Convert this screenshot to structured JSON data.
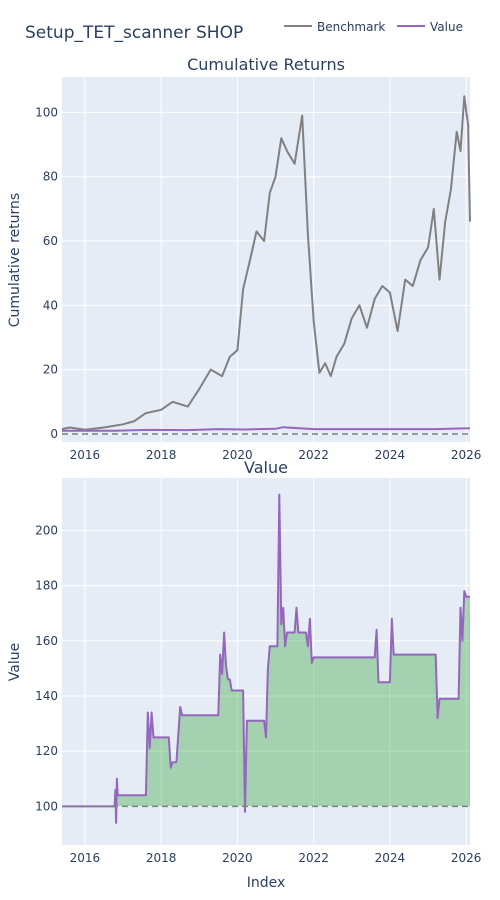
{
  "figure": {
    "title": "Setup_TET_scanner SHOP",
    "legend": [
      {
        "name": "Benchmark",
        "color": "#808080"
      },
      {
        "name": "Value",
        "color": "#9467bd"
      }
    ],
    "legend_position": "top-right"
  },
  "chart_data": [
    {
      "type": "line",
      "title": "Cumulative Returns",
      "xlabel": "",
      "ylabel": "Cumulative returns",
      "xlim": [
        2015.4,
        2026.1
      ],
      "ylim": [
        -2.5,
        111
      ],
      "yticks": [
        0,
        20,
        40,
        60,
        80,
        100
      ],
      "xticks": [
        2016,
        2018,
        2020,
        2022,
        2024,
        2026
      ],
      "grid": true,
      "series": [
        {
          "name": "Benchmark",
          "color": "#808080",
          "x": [
            2015.4,
            2015.6,
            2016.0,
            2016.5,
            2017.0,
            2017.3,
            2017.6,
            2018.0,
            2018.3,
            2018.7,
            2019.0,
            2019.3,
            2019.6,
            2019.8,
            2020.0,
            2020.15,
            2020.35,
            2020.5,
            2020.7,
            2020.85,
            2021.0,
            2021.15,
            2021.3,
            2021.5,
            2021.7,
            2021.85,
            2022.0,
            2022.15,
            2022.3,
            2022.45,
            2022.6,
            2022.8,
            2023.0,
            2023.2,
            2023.4,
            2023.6,
            2023.8,
            2024.0,
            2024.2,
            2024.4,
            2024.6,
            2024.8,
            2025.0,
            2025.15,
            2025.3,
            2025.45,
            2025.6,
            2025.75,
            2025.85,
            2025.95,
            2026.05,
            2026.1
          ],
          "values": [
            1.5,
            2.0,
            1.3,
            2.0,
            3.0,
            4.0,
            6.5,
            7.5,
            10.0,
            8.5,
            14.0,
            20.0,
            18.0,
            24.0,
            26.0,
            45.0,
            55.0,
            63.0,
            60.0,
            75.0,
            80.0,
            92.0,
            88.0,
            84.0,
            99.0,
            62.0,
            35.0,
            19.0,
            22.0,
            18.0,
            24.0,
            28.0,
            36.0,
            40.0,
            33.0,
            42.0,
            46.0,
            44.0,
            32.0,
            48.0,
            46.0,
            54.0,
            58.0,
            70.0,
            48.0,
            66.0,
            76.0,
            94.0,
            88.0,
            105.0,
            96.0,
            66.0
          ]
        },
        {
          "name": "Value",
          "color": "#9467bd",
          "x": [
            2015.4,
            2016.8,
            2017.7,
            2018.7,
            2019.5,
            2020.2,
            2021.0,
            2021.2,
            2022.0,
            2023.6,
            2024.0,
            2025.2,
            2025.8,
            2026.1
          ],
          "values": [
            1.0,
            1.0,
            1.25,
            1.2,
            1.5,
            1.4,
            1.6,
            2.1,
            1.5,
            1.5,
            1.5,
            1.5,
            1.7,
            1.8
          ]
        },
        {
          "name": "",
          "color": "#808080",
          "dashed": true,
          "x": [
            2015.4,
            2026.1
          ],
          "values": [
            0,
            0
          ]
        }
      ]
    },
    {
      "type": "area",
      "title": "Value",
      "xlabel": "Index",
      "ylabel": "Value",
      "xlim": [
        2015.4,
        2026.1
      ],
      "ylim": [
        86,
        219
      ],
      "yticks": [
        100,
        120,
        140,
        160,
        180,
        200
      ],
      "xticks": [
        2016,
        2018,
        2020,
        2022,
        2024,
        2026
      ],
      "grid": true,
      "baseline": 100,
      "series": [
        {
          "name": "Value",
          "color": "#9467bd",
          "fill": "rgba(44,160,44,0.35)",
          "x": [
            2015.4,
            2016.78,
            2016.8,
            2016.82,
            2016.84,
            2016.86,
            2016.88,
            2017.6,
            2017.65,
            2017.7,
            2017.75,
            2017.8,
            2018.2,
            2018.25,
            2018.3,
            2018.4,
            2018.5,
            2018.55,
            2018.6,
            2018.65,
            2019.5,
            2019.55,
            2019.6,
            2019.65,
            2019.7,
            2019.75,
            2019.8,
            2019.85,
            2019.9,
            2020.0,
            2020.15,
            2020.2,
            2020.25,
            2020.3,
            2020.35,
            2020.7,
            2020.75,
            2020.8,
            2020.85,
            2020.95,
            2021.0,
            2021.05,
            2021.1,
            2021.15,
            2021.2,
            2021.25,
            2021.3,
            2021.5,
            2021.55,
            2021.6,
            2021.8,
            2021.85,
            2021.9,
            2021.95,
            2022.0,
            2023.6,
            2023.65,
            2023.7,
            2024.0,
            2024.05,
            2024.1,
            2025.2,
            2025.25,
            2025.3,
            2025.8,
            2025.85,
            2025.9,
            2025.95,
            2026.0,
            2026.1
          ],
          "values": [
            100,
            100,
            106,
            94,
            110,
            104,
            104,
            104,
            134,
            121,
            134,
            125,
            125,
            114,
            116,
            116,
            136,
            133,
            133,
            133,
            133,
            155,
            148,
            163,
            151,
            146,
            146,
            142,
            142,
            142,
            142,
            98,
            131,
            131,
            131,
            131,
            125,
            150,
            158,
            158,
            158,
            158,
            213,
            166,
            172,
            158,
            163,
            163,
            172,
            163,
            163,
            158,
            168,
            152,
            154,
            154,
            164,
            145,
            145,
            168,
            155,
            155,
            132,
            139,
            139,
            172,
            160,
            178,
            176,
            176
          ]
        },
        {
          "name": "",
          "color": "#808080",
          "dashed": true,
          "x": [
            2015.4,
            2026.1
          ],
          "values": [
            100,
            100
          ]
        }
      ]
    }
  ]
}
